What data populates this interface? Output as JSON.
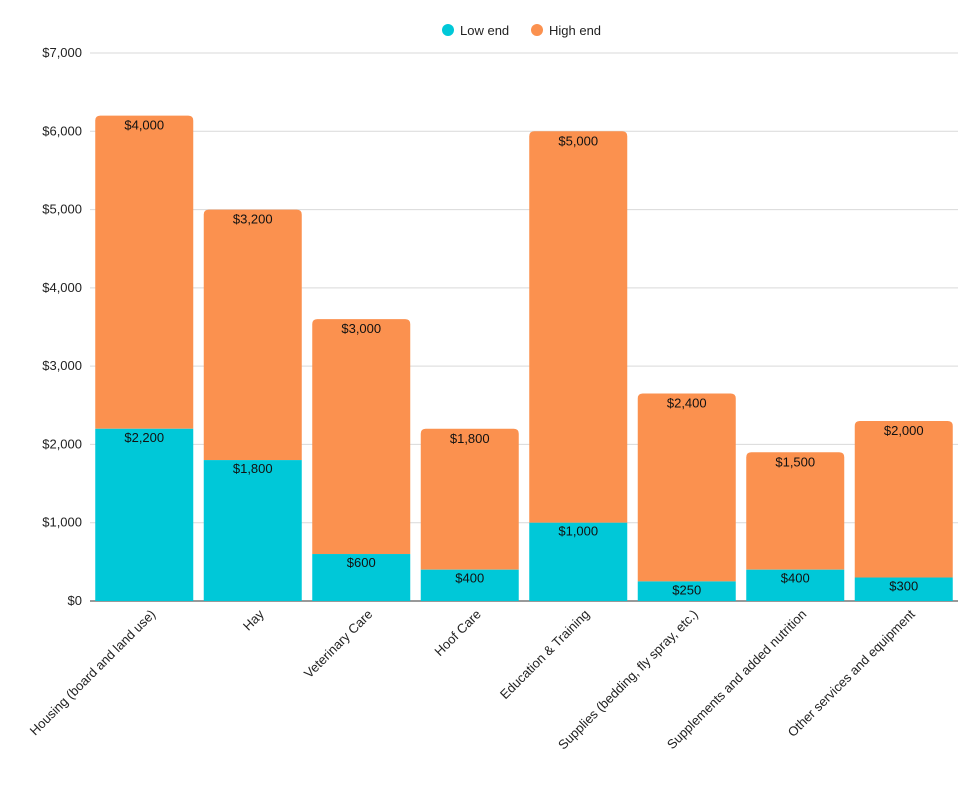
{
  "chart_data": {
    "type": "bar",
    "stacked": true,
    "title": "",
    "xlabel": "",
    "ylabel": "",
    "categories": [
      "Housing (board and land use)",
      "Hay",
      "Veterinary Care",
      "Hoof Care",
      "Education & Training",
      "Supplies (bedding, fly spray, etc.)",
      "Supplements and added nutrition",
      "Other services and equipment"
    ],
    "series": [
      {
        "name": "Low end",
        "color": "#00c8d8",
        "values": [
          2200,
          1800,
          600,
          400,
          1000,
          250,
          400,
          300
        ],
        "labels": [
          "$2,200",
          "$1,800",
          "$600",
          "$400",
          "$1,000",
          "$250",
          "$400",
          "$300"
        ]
      },
      {
        "name": "High end",
        "color": "#fb914f",
        "values": [
          4000,
          3200,
          3000,
          1800,
          5000,
          2400,
          1500,
          2000
        ],
        "labels": [
          "$4,000",
          "$3,200",
          "$3,000",
          "$1,800",
          "$5,000",
          "$2,400",
          "$1,500",
          "$2,000"
        ]
      }
    ],
    "ylim": [
      0,
      7000
    ],
    "yticks": [
      0,
      1000,
      2000,
      3000,
      4000,
      5000,
      6000,
      7000
    ],
    "ytick_labels": [
      "$0",
      "$1,000",
      "$2,000",
      "$3,000",
      "$4,000",
      "$5,000",
      "$6,000",
      "$7,000"
    ],
    "grid": true,
    "legend_position": "top-center"
  }
}
